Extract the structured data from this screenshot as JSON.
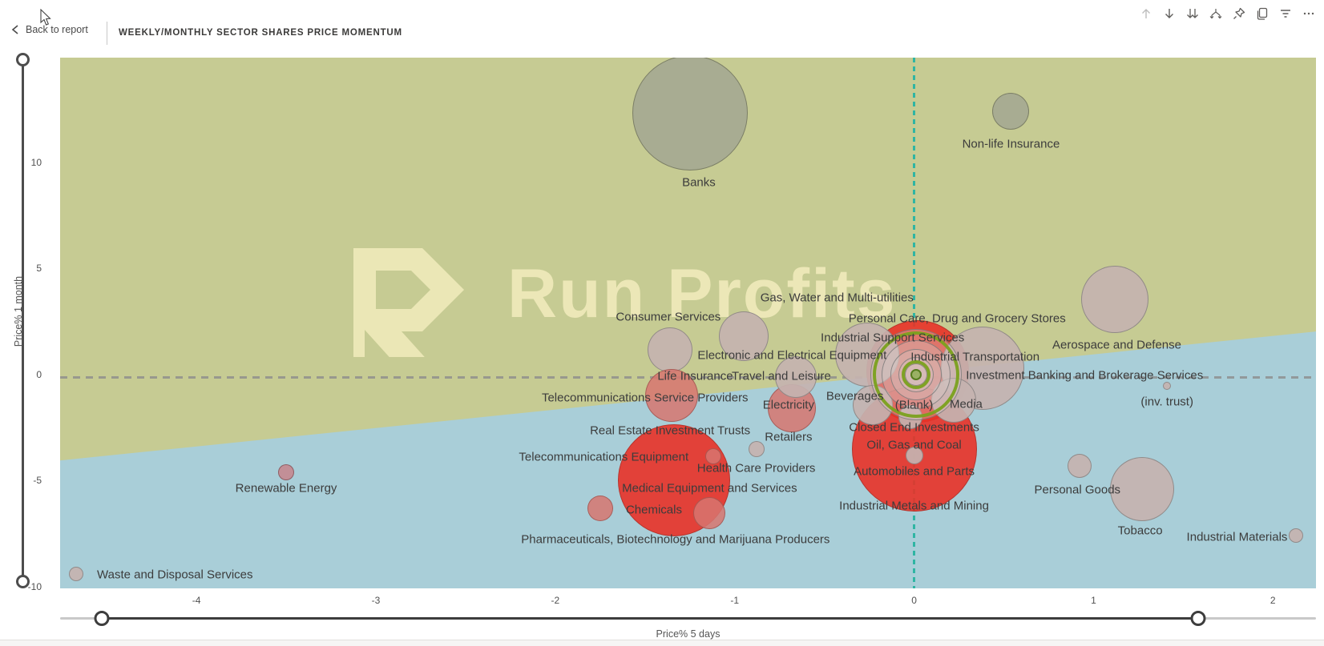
{
  "header": {
    "back_label": "Back to report",
    "title": "WEEKLY/MONTHLY SECTOR SHARES PRICE MOMENTUM",
    "toolbar": [
      {
        "icon": "drill-up-icon",
        "label": "Drill up",
        "disabled": true
      },
      {
        "icon": "drill-down-icon",
        "label": "Drill down",
        "disabled": false
      },
      {
        "icon": "next-level-icon",
        "label": "Go to the next level",
        "disabled": false
      },
      {
        "icon": "expand-level-icon",
        "label": "Expand all down one level",
        "disabled": false
      },
      {
        "icon": "pin-icon",
        "label": "Pin visual",
        "disabled": false
      },
      {
        "icon": "copy-icon",
        "label": "Copy visual",
        "disabled": false
      },
      {
        "icon": "filter-icon",
        "label": "Filters",
        "disabled": false
      },
      {
        "icon": "more-options-icon",
        "label": "More options",
        "disabled": false
      }
    ]
  },
  "chart_data": {
    "type": "scatter",
    "title": "WEEKLY/MONTHLY SECTOR SHARES PRICE MOMENTUM",
    "xlabel": "Price% 5 days",
    "ylabel": "Price% 1 month",
    "x_ticks": [
      -4,
      -3,
      -2,
      -1,
      0,
      1,
      2
    ],
    "y_ticks": [
      10,
      5,
      0,
      -5,
      -10
    ],
    "x_range": [
      -4.76,
      2.24
    ],
    "y_range": [
      -10.08,
      14.94
    ],
    "watermark": "Run Profits",
    "grid": false,
    "legend": "none",
    "colors": {
      "quadrant_positive": "#c6cb93",
      "quadrant_negative": "#a9ced8",
      "zero_line_x": "#2fb5a3",
      "zero_line_y": "#8c8c8c",
      "bubble_red": "#e8352b",
      "bubble_gray": "#c5b3af",
      "bubble_olive": "#a8ac92",
      "highlight_green": "#7aa11e",
      "watermark": "#f1ebbb"
    },
    "bubbles": [
      {
        "name": "banks",
        "x": -1.25,
        "y": 12.35,
        "r": 72,
        "c": "olive"
      },
      {
        "name": "non-life-insurance",
        "x": 0.54,
        "y": 12.4,
        "r": 23,
        "c": "olive"
      },
      {
        "name": "aerospace-and-defense",
        "x": 1.12,
        "y": 3.55,
        "r": 42,
        "c": "gray"
      },
      {
        "name": "gas-water-and-multi-utilities",
        "x": -0.95,
        "y": 1.8,
        "r": 31,
        "c": "gray"
      },
      {
        "name": "consumer-services",
        "x": -1.36,
        "y": 1.15,
        "r": 28,
        "c": "gray"
      },
      {
        "name": "cluster-red-large",
        "x": 0.02,
        "y": 0.15,
        "r": 64,
        "c": "red"
      },
      {
        "name": "oil-gas-and-coal",
        "x": 0.0,
        "y": -3.5,
        "r": 78,
        "c": "red"
      },
      {
        "name": "medical-equipment-and-services",
        "x": -1.34,
        "y": -5.0,
        "r": 70,
        "c": "red"
      },
      {
        "name": "telecommunications-service-providers",
        "x": -1.35,
        "y": -1.0,
        "r": 33,
        "c": "softred"
      },
      {
        "name": "electricity",
        "x": -0.68,
        "y": -1.6,
        "r": 30,
        "c": "softred"
      },
      {
        "name": "cluster-gray-1",
        "x": 0.38,
        "y": 0.3,
        "r": 52,
        "c": "gray"
      },
      {
        "name": "cluster-gray-2",
        "x": -0.26,
        "y": 0.95,
        "r": 40,
        "c": "gray"
      },
      {
        "name": "cluster-gray-3",
        "x": -0.66,
        "y": -0.1,
        "r": 26,
        "c": "gray"
      },
      {
        "name": "cluster-gray-4",
        "x": 0.22,
        "y": -1.2,
        "r": 28,
        "c": "gray"
      },
      {
        "name": "cluster-gray-5",
        "x": -0.23,
        "y": -1.45,
        "r": 25,
        "c": "gray"
      },
      {
        "name": "cluster-gray-6",
        "x": -0.02,
        "y": -2.0,
        "r": 15,
        "c": "gray"
      },
      {
        "name": "cluster-gray-7",
        "x": 0.0,
        "y": -3.8,
        "r": 11,
        "c": "gray"
      },
      {
        "name": "ring-gray-1",
        "x": 0.01,
        "y": 0.0,
        "r": 57,
        "c": "ringgray"
      },
      {
        "name": "ring-gray-2",
        "x": 0.01,
        "y": 0.0,
        "r": 43,
        "c": "ringgray"
      },
      {
        "name": "ring-gray-3",
        "x": 0.01,
        "y": 0.0,
        "r": 32,
        "c": "ringgray"
      },
      {
        "name": "ring-gray-4",
        "x": 0.01,
        "y": 0.0,
        "r": 22,
        "c": "ringgray"
      },
      {
        "name": "ring-gray-5",
        "x": 0.01,
        "y": 0.0,
        "r": 14,
        "c": "ringgray"
      },
      {
        "name": "ring-green-outer",
        "x": 0.01,
        "y": 0.0,
        "r": 54,
        "c": "ringgreen"
      },
      {
        "name": "ring-green-inner",
        "x": 0.01,
        "y": 0.0,
        "r": 18,
        "c": "ringgreen"
      },
      {
        "name": "dot-green",
        "x": 0.01,
        "y": 0.0,
        "r": 7,
        "c": "dotgreen"
      },
      {
        "name": "retailers",
        "x": -0.88,
        "y": -3.53,
        "r": 10,
        "c": "gray"
      },
      {
        "name": "telecommunications-equipment",
        "x": -1.12,
        "y": -3.84,
        "r": 10,
        "c": "softred"
      },
      {
        "name": "chemicals",
        "x": -1.75,
        "y": -6.3,
        "r": 16,
        "c": "softred"
      },
      {
        "name": "pharmaceuticals-biotechnology",
        "x": -1.14,
        "y": -6.55,
        "r": 20,
        "c": "softred"
      },
      {
        "name": "renewable-energy",
        "x": -3.5,
        "y": -4.6,
        "r": 10,
        "c": "dusty"
      },
      {
        "name": "waste-and-disposal-services",
        "x": -4.67,
        "y": -9.4,
        "r": 9,
        "c": "gray"
      },
      {
        "name": "personal-goods",
        "x": 0.92,
        "y": -4.3,
        "r": 15,
        "c": "gray"
      },
      {
        "name": "tobacco",
        "x": 1.27,
        "y": -5.4,
        "r": 40,
        "c": "gray"
      },
      {
        "name": "industrial-materials",
        "x": 2.13,
        "y": -7.6,
        "r": 9,
        "c": "gray"
      },
      {
        "name": "inv-trust",
        "x": 1.41,
        "y": -0.54,
        "r": 5,
        "c": "gray"
      }
    ],
    "labels": [
      {
        "text": "Banks",
        "x": -1.2,
        "y": 9.05
      },
      {
        "text": "Non-life Insurance",
        "x": 0.54,
        "y": 10.85
      },
      {
        "text": "Gas, Water and Multi-utilities",
        "x": -0.43,
        "y": 3.62
      },
      {
        "text": "Consumer Services",
        "x": -1.37,
        "y": 2.72
      },
      {
        "text": "Personal Care, Drug and Grocery Stores",
        "x": 0.24,
        "y": 2.62
      },
      {
        "text": "Industrial Support Services",
        "x": -0.12,
        "y": 1.72
      },
      {
        "text": "Electronic and Electrical Equipment",
        "x": -0.68,
        "y": 0.9
      },
      {
        "text": "Industrial Transportation",
        "x": 0.34,
        "y": 0.82
      },
      {
        "text": "Aerospace and Defense",
        "x": 1.13,
        "y": 1.4
      },
      {
        "text": "Life Insurance",
        "x": -1.22,
        "y": -0.08
      },
      {
        "text": "Travel and Leisure",
        "x": -0.74,
        "y": -0.08
      },
      {
        "text": "Investment Banking and Brokerage Services",
        "x": 0.95,
        "y": -0.04
      },
      {
        "text": "Telecommunications Service Providers",
        "x": -1.5,
        "y": -1.1
      },
      {
        "text": "Electricity",
        "x": -0.7,
        "y": -1.42
      },
      {
        "text": "Beverages",
        "x": -0.33,
        "y": -1.02
      },
      {
        "text": "(Blank)",
        "x": 0.0,
        "y": -1.44
      },
      {
        "text": "Media",
        "x": 0.29,
        "y": -1.4
      },
      {
        "text": "(inv. trust)",
        "x": 1.41,
        "y": -1.28
      },
      {
        "text": "Real Estate Investment Trusts",
        "x": -1.36,
        "y": -2.66
      },
      {
        "text": "Closed End Investments",
        "x": 0.0,
        "y": -2.5
      },
      {
        "text": "Retailers",
        "x": -0.7,
        "y": -2.94
      },
      {
        "text": "Oil, Gas and Coal",
        "x": 0.0,
        "y": -3.32
      },
      {
        "text": "Telecommunications Equipment",
        "x": -1.73,
        "y": -3.9
      },
      {
        "text": "Health Care Providers",
        "x": -0.88,
        "y": -4.43
      },
      {
        "text": "Automobiles and Parts",
        "x": 0.0,
        "y": -4.58
      },
      {
        "text": "Renewable Energy",
        "x": -3.5,
        "y": -5.38
      },
      {
        "text": "Medical Equipment and Services",
        "x": -1.14,
        "y": -5.36
      },
      {
        "text": "Personal Goods",
        "x": 0.91,
        "y": -5.43
      },
      {
        "text": "Industrial Metals and Mining",
        "x": 0.0,
        "y": -6.2
      },
      {
        "text": "Chemicals",
        "x": -1.45,
        "y": -6.38
      },
      {
        "text": "Tobacco",
        "x": 1.26,
        "y": -7.35
      },
      {
        "text": "Industrial Materials",
        "x": 1.8,
        "y": -7.66
      },
      {
        "text": "Pharmaceuticals, Biotechnology and Marijuana Producers",
        "x": -1.33,
        "y": -7.78
      },
      {
        "text": "Waste and Disposal Services",
        "x": -4.12,
        "y": -9.45
      }
    ]
  },
  "sliders": {
    "x_slider": {
      "start_pct": 3.3,
      "end_pct": 90.6
    },
    "y_slider": {
      "start_pct": 0,
      "end_pct": 100
    }
  }
}
